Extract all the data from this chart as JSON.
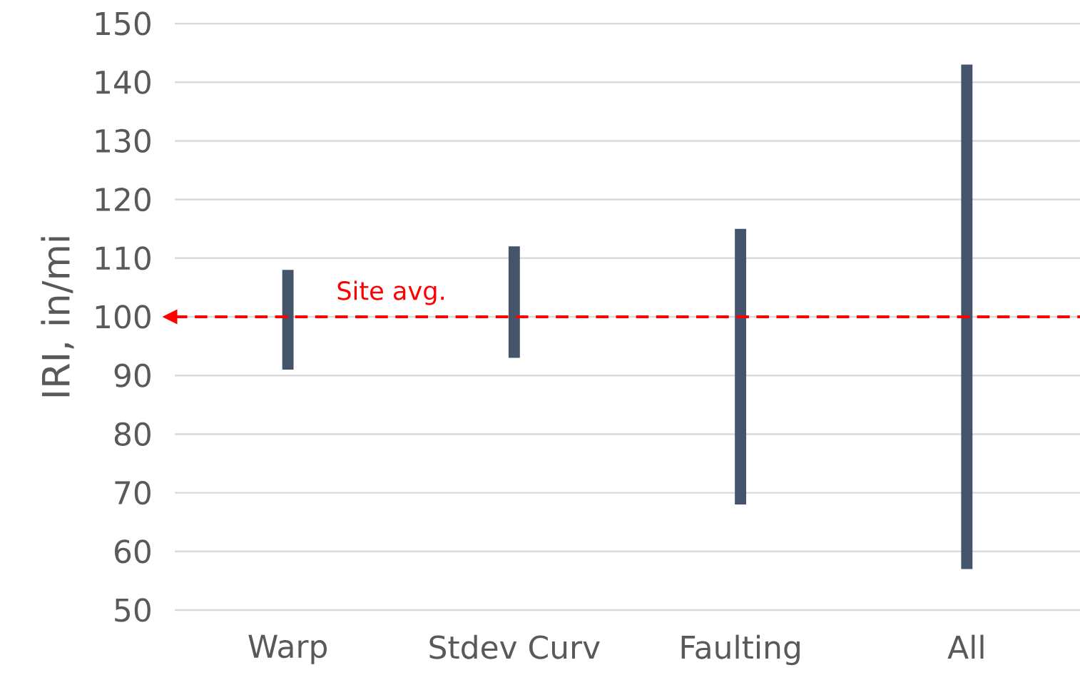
{
  "chart_data": {
    "type": "bar",
    "ylabel": "IRI, in/mi",
    "categories": [
      "Warp",
      "Stdev Curv",
      "Faulting",
      "All"
    ],
    "base": [
      91,
      93,
      68,
      57
    ],
    "values": [
      17,
      19,
      47,
      86
    ],
    "color": "#44546a",
    "ylim": [
      50,
      150
    ],
    "yticks": [
      50,
      60,
      70,
      80,
      90,
      100,
      110,
      120,
      130,
      140,
      150
    ],
    "grid": "y",
    "ref_lines": [
      {
        "axis": "y",
        "value": 100,
        "label": "Site avg.",
        "color": "#ff0000",
        "line_style": "dashed"
      }
    ]
  }
}
